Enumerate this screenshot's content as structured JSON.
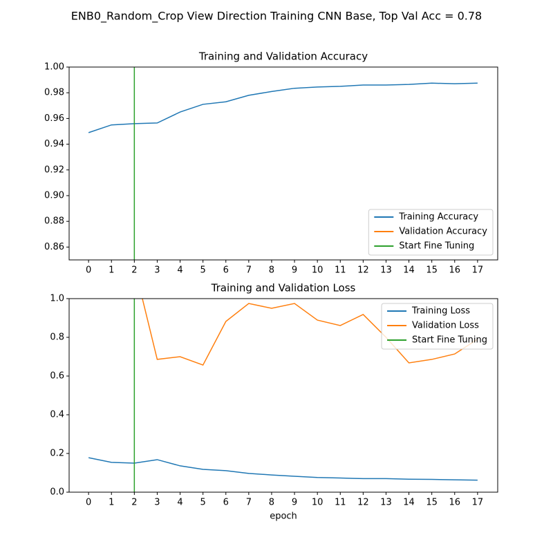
{
  "title": "ENB0_Random_Crop View Direction Training CNN Base, Top Val Acc = 0.78",
  "chart_data": [
    {
      "type": "line",
      "title": "Training and Validation Accuracy",
      "x": [
        0,
        1,
        2,
        3,
        4,
        5,
        6,
        7,
        8,
        9,
        10,
        11,
        12,
        13,
        14,
        15,
        16,
        17
      ],
      "series": [
        {
          "name": "Training Accuracy",
          "color": "#1f77b4",
          "values": [
            0.949,
            0.955,
            0.956,
            0.9565,
            0.965,
            0.971,
            0.973,
            0.978,
            0.981,
            0.9835,
            0.9845,
            0.985,
            0.986,
            0.986,
            0.9865,
            0.9875,
            0.987,
            0.9875
          ]
        },
        {
          "name": "Validation Accuracy",
          "color": "#ff7f0e",
          "values": [
            null,
            null,
            null,
            null,
            null,
            null,
            null,
            null,
            null,
            null,
            null,
            null,
            null,
            null,
            null,
            null,
            null,
            null
          ]
        }
      ],
      "vlines": [
        {
          "name": "Start Fine Tuning",
          "color": "#2ca02c",
          "x": 2
        }
      ],
      "xlim": [
        -0.85,
        17.88
      ],
      "xticks": [
        0,
        1,
        2,
        3,
        4,
        5,
        6,
        7,
        8,
        9,
        10,
        11,
        12,
        13,
        14,
        15,
        16,
        17
      ],
      "ylim": [
        0.85,
        1.0
      ],
      "yticks": [
        0.86,
        0.88,
        {
          "value": 0.9,
          "label": "0.90"
        },
        0.92,
        0.94,
        0.96,
        0.98,
        {
          "value": 1.0,
          "label": "1.00"
        }
      ],
      "legend": "lower right"
    },
    {
      "type": "line",
      "title": "Training and Validation Loss",
      "xlabel": "epoch",
      "x": [
        0,
        1,
        2,
        3,
        4,
        5,
        6,
        7,
        8,
        9,
        10,
        11,
        12,
        13,
        14,
        15,
        16,
        17
      ],
      "series": [
        {
          "name": "Training Loss",
          "color": "#1f77b4",
          "values": [
            0.178,
            0.154,
            0.15,
            0.168,
            0.136,
            0.118,
            0.111,
            0.097,
            0.089,
            0.082,
            0.076,
            0.073,
            0.07,
            0.07,
            0.067,
            0.066,
            0.064,
            0.062
          ]
        },
        {
          "name": "Validation Loss",
          "color": "#ff7f0e",
          "values": [
            null,
            null,
            1.17,
            0.686,
            0.7,
            0.657,
            0.882,
            0.975,
            0.95,
            0.975,
            0.889,
            0.861,
            0.918,
            0.8,
            0.668,
            0.686,
            0.714,
            0.79
          ]
        }
      ],
      "vlines": [
        {
          "name": "Start Fine Tuning",
          "color": "#2ca02c",
          "x": 2
        }
      ],
      "xlim": [
        -0.85,
        17.88
      ],
      "xticks": [
        0,
        1,
        2,
        3,
        4,
        5,
        6,
        7,
        8,
        9,
        10,
        11,
        12,
        13,
        14,
        15,
        16,
        17
      ],
      "ylim": [
        0,
        1.0
      ],
      "yticks": [
        {
          "value": 0,
          "label": "0.0"
        },
        0.2,
        0.4,
        0.6,
        0.8,
        {
          "value": 1.0,
          "label": "1.0"
        }
      ],
      "legend": "upper right"
    }
  ]
}
